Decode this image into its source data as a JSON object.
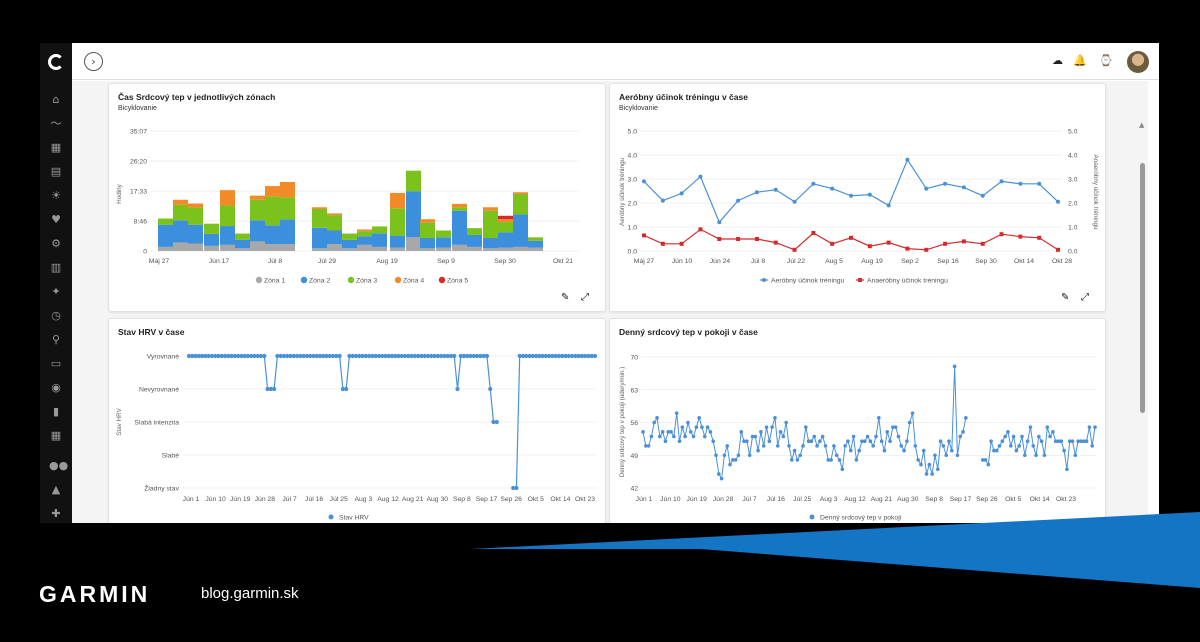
{
  "footer": {
    "brand": "GARMIN",
    "url": "blog.garmin.sk"
  },
  "sidebar": {
    "icons": [
      "home-icon",
      "activity-icon",
      "calendar-icon",
      "report-icon",
      "running-icon",
      "heart-icon",
      "gear-icon",
      "stats-icon",
      "person-icon",
      "timer-icon",
      "bike-icon",
      "shoe-icon",
      "location-icon",
      "chart-icon",
      "dashboard-icon",
      "group-icon",
      "connections-icon",
      "settings-icon"
    ]
  },
  "topbar": {
    "expand_glyph": "›",
    "upload_glyph": "☁",
    "bell_glyph": "🔔",
    "watch_glyph": "⌚"
  },
  "colors": {
    "zone1": "#a8a8a8",
    "zone2": "#3c8fdd",
    "zone3": "#7cc21c",
    "zone4": "#f28a27",
    "zone5": "#d62a2a",
    "blue": "#4a90d9",
    "red": "#d62a2a",
    "footer_blue": "#1475c4"
  },
  "cards": {
    "zones": {
      "title": "Čas Srdcový tep v jednotlivých zónach",
      "subtitle": "Bicyklovanie",
      "ylabel": "Hodiny",
      "yticks": [
        "35:07",
        "26:20",
        "17:33",
        "8:46",
        "0"
      ],
      "xticks": [
        "Máj 27",
        "Jún 17",
        "Júl 8",
        "Júl 29",
        "Aug 19",
        "Sep 9",
        "Sep 30",
        "Okt 21"
      ],
      "legend": [
        "Zóna 1",
        "Zóna 2",
        "Zóna 3",
        "Zóna 4",
        "Zóna 5"
      ]
    },
    "aerobic": {
      "title": "Aeróbny účinok tréningu v čase",
      "subtitle": "Bicyklovanie",
      "ylabel_left": "Aeróbny účinok tréningu",
      "ylabel_right": "Anaeróbny účinok tréningu",
      "yticks": [
        "5.0",
        "4.0",
        "3.0",
        "2.0",
        "1.0",
        "0.0"
      ],
      "xticks": [
        "Máj 27",
        "Jún 10",
        "Jún 24",
        "Júl 8",
        "Júl 22",
        "Aug 5",
        "Aug 19",
        "Sep 2",
        "Sep 16",
        "Sep 30",
        "Okt 14",
        "Okt 28"
      ],
      "legend": [
        "Aeróbny účinok tréningu",
        "Anaeróbny účinok tréningu"
      ]
    },
    "hrv": {
      "title": "Stav HRV v čase",
      "ylabel": "Stav HRV",
      "ycats": [
        "Vyrovnané",
        "Nevyrovnané",
        "Slabá intenzita",
        "Slabé",
        "Žiadny stav"
      ],
      "xticks": [
        "Jún 1",
        "Jún 10",
        "Jún 19",
        "Jún 28",
        "Júl 7",
        "Júl 16",
        "Júl 25",
        "Aug 3",
        "Aug 12",
        "Aug 21",
        "Aug 30",
        "Sep 8",
        "Sep 17",
        "Sep 26",
        "Okt 5",
        "Okt 14",
        "Okt 23"
      ],
      "legend": [
        "Stav HRV"
      ]
    },
    "rhr": {
      "title": "Denný srdcový tep v pokoji v čase",
      "ylabel": "Denný srdcový tep v pokoji (údery/min.)",
      "yticks": [
        "70",
        "63",
        "56",
        "49",
        "42"
      ],
      "xticks": [
        "Jún 1",
        "Jún 10",
        "Jún 19",
        "Jún 28",
        "Júl 7",
        "Júl 16",
        "Júl 25",
        "Aug 3",
        "Aug 12",
        "Aug 21",
        "Aug 30",
        "Sep 8",
        "Sep 17",
        "Sep 26",
        "Okt 5",
        "Okt 14",
        "Okt 23"
      ],
      "legend": [
        "Denný srdcový tep v pokoji"
      ]
    }
  },
  "chart_data": [
    {
      "type": "bar",
      "title": "Čas Srdcový tep v jednotlivých zónach",
      "subtitle": "Bicyklovanie",
      "ylabel": "Hodiny",
      "ylim": [
        0,
        35.12
      ],
      "stacked": true,
      "series_names": [
        "Zóna 1",
        "Zóna 2",
        "Zóna 3",
        "Zóna 4",
        "Zóna 5"
      ],
      "bars": [
        [
          1.2,
          6.5,
          1.8,
          0,
          0
        ],
        [
          2.5,
          6.5,
          4.5,
          1.5,
          0
        ],
        [
          2.2,
          5.5,
          5.0,
          1.2,
          0
        ],
        [
          1.5,
          3.5,
          3.0,
          0,
          0
        ],
        [
          1.8,
          5.5,
          6.0,
          4.5,
          0
        ],
        [
          0.8,
          2.5,
          1.8,
          0,
          0
        ],
        [
          2.8,
          6.2,
          6.0,
          1.2,
          0
        ],
        [
          2.0,
          5.5,
          8.5,
          3.0,
          0
        ],
        [
          2.0,
          7.2,
          6.5,
          4.5,
          0
        ],
        [
          0,
          0,
          0,
          0,
          0
        ],
        [
          0,
          0,
          0,
          0,
          0
        ],
        [
          0.8,
          6.0,
          5.5,
          0.5,
          0
        ],
        [
          2.0,
          4.0,
          4.5,
          0.5,
          0
        ],
        [
          0.8,
          2.5,
          1.8,
          0,
          0
        ],
        [
          1.8,
          2.5,
          1.5,
          0.5,
          0
        ],
        [
          1.2,
          4.0,
          2.0,
          0,
          0
        ],
        [
          1.0,
          3.5,
          8.0,
          4.5,
          0
        ],
        [
          4.0,
          13.5,
          6.0,
          0,
          0
        ],
        [
          0.8,
          3.0,
          4.5,
          1.0,
          0
        ],
        [
          1.0,
          3.0,
          2.0,
          0,
          0
        ],
        [
          1.8,
          10.0,
          1.0,
          1.0,
          0
        ],
        [
          1.2,
          3.5,
          2.0,
          0,
          0
        ],
        [
          0.8,
          3.0,
          8.0,
          1.0,
          0
        ],
        [
          1.0,
          4.5,
          3.0,
          0.8,
          1.0
        ],
        [
          1.2,
          9.5,
          6.0,
          0.5,
          0
        ],
        [
          1.0,
          2.0,
          1.0,
          0,
          0
        ]
      ]
    },
    {
      "type": "line",
      "title": "Aeróbny účinok tréningu v čase",
      "subtitle": "Bicyklovanie",
      "ylim": [
        0,
        5
      ],
      "series": [
        {
          "name": "Aeróbny účinok tréningu",
          "values": [
            2.9,
            2.1,
            2.4,
            3.1,
            1.2,
            2.1,
            2.45,
            2.55,
            2.05,
            2.8,
            2.6,
            2.3,
            2.35,
            1.9,
            3.8,
            2.6,
            2.8,
            2.65,
            2.3,
            2.9,
            2.8,
            2.8,
            2.05
          ]
        },
        {
          "name": "Anaeróbny účinok tréningu",
          "values": [
            0.65,
            0.3,
            0.3,
            0.9,
            0.5,
            0.5,
            0.5,
            0.35,
            0.05,
            0.75,
            0.3,
            0.55,
            0.2,
            0.35,
            0.1,
            0.05,
            0.3,
            0.4,
            0.3,
            0.7,
            0.6,
            0.55,
            0.05
          ]
        }
      ]
    },
    {
      "type": "line",
      "title": "Stav HRV v čase",
      "ylabel": "Stav HRV",
      "categories_y": [
        "Žiadny stav",
        "Slabé",
        "Slabá intenzita",
        "Nevyrovnané",
        "Vyrovnané"
      ],
      "series": [
        {
          "name": "Stav HRV",
          "levels": [
            4,
            4,
            4,
            4,
            4,
            4,
            4,
            4,
            4,
            4,
            4,
            4,
            4,
            4,
            4,
            4,
            4,
            4,
            4,
            4,
            4,
            4,
            4,
            4,
            3,
            3,
            3,
            4,
            4,
            4,
            4,
            4,
            4,
            4,
            4,
            4,
            4,
            4,
            4,
            4,
            4,
            4,
            4,
            4,
            4,
            4,
            4,
            3,
            3,
            4,
            4,
            4,
            4,
            4,
            4,
            4,
            4,
            4,
            4,
            4,
            4,
            4,
            4,
            4,
            4,
            4,
            4,
            4,
            4,
            4,
            4,
            4,
            4,
            4,
            4,
            4,
            4,
            4,
            4,
            4,
            4,
            4,
            3,
            4,
            4,
            4,
            4,
            4,
            4,
            4,
            4,
            4,
            3,
            2,
            2,
            null,
            null,
            null,
            null,
            0,
            0,
            4,
            4,
            4,
            4,
            4,
            4,
            4,
            4,
            4,
            4,
            4,
            4,
            4,
            4,
            4,
            4,
            4,
            4,
            4,
            4,
            4,
            4,
            4,
            4
          ]
        }
      ]
    },
    {
      "type": "line",
      "title": "Denný srdcový tep v pokoji v čase",
      "ylabel": "Denný srdcový tep v pokoji (údery/min.)",
      "ylim": [
        42,
        70
      ],
      "series": [
        {
          "name": "Denný srdcový tep v pokoji",
          "values": [
            54,
            51,
            51,
            53,
            56,
            57,
            53,
            54,
            52,
            54,
            54,
            53,
            58,
            52,
            55,
            53,
            56,
            54,
            53,
            55,
            57,
            55,
            53,
            55,
            54,
            52,
            49,
            45,
            44,
            49,
            51,
            47,
            48,
            48,
            49,
            54,
            52,
            52,
            49,
            53,
            53,
            50,
            54,
            51,
            55,
            52,
            55,
            57,
            51,
            54,
            53,
            56,
            51,
            48,
            50,
            48,
            49,
            51,
            55,
            52,
            52,
            53,
            51,
            52,
            53,
            51,
            48,
            48,
            51,
            49,
            48,
            46,
            51,
            52,
            50,
            53,
            48,
            50,
            52,
            52,
            53,
            52,
            51,
            53,
            57,
            52,
            50,
            54,
            52,
            55,
            55,
            53,
            51,
            50,
            52,
            56,
            58,
            51,
            48,
            47,
            50,
            45,
            47,
            45,
            49,
            46,
            52,
            51,
            49,
            52,
            50,
            68,
            49,
            53,
            54,
            57,
            null,
            null,
            null,
            null,
            null,
            48,
            48,
            47,
            52,
            50,
            50,
            51,
            52,
            53,
            54,
            51,
            53,
            50,
            51,
            53,
            49,
            52,
            55,
            51,
            49,
            53,
            52,
            49,
            55,
            53,
            54,
            52,
            52,
            52,
            50,
            46,
            52,
            52,
            49,
            52,
            52,
            52,
            52,
            55,
            51,
            55
          ]
        }
      ]
    }
  ]
}
